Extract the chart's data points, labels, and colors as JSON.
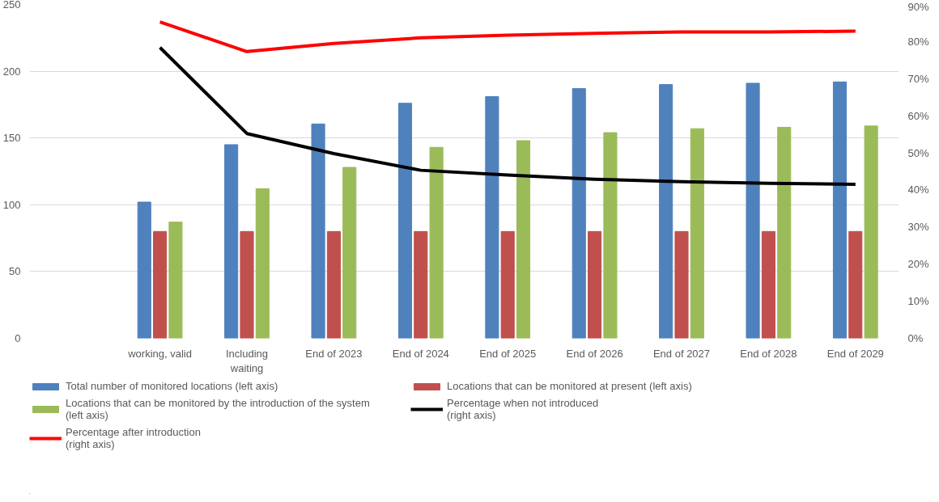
{
  "chart_data": {
    "type": "bar",
    "categories": [
      null,
      "working, valid",
      "Including\nwaiting",
      "End of 2023",
      "End of 2024",
      "End of 2025",
      "End of 2026",
      "End of 2027",
      "End of 2028",
      "End of 2029"
    ],
    "series": [
      {
        "name": "Total number of monitored locations (left axis)",
        "color": "#4f81bd",
        "values": [
          null,
          102,
          145,
          160.5,
          176,
          181,
          187,
          190,
          191,
          192
        ]
      },
      {
        "name": "Locations that can be monitored at present (left axis)",
        "color": "#c0504d",
        "values": [
          null,
          80,
          80,
          80,
          80,
          80,
          80,
          80,
          80,
          80
        ]
      },
      {
        "name": "Locations that can be monitored by the introduction of the system\n(left axis)",
        "color": "#9bbb59",
        "values": [
          null,
          87,
          112,
          128,
          143,
          148,
          154,
          157,
          158,
          159
        ]
      },
      {
        "name": "Percentage when not introduced\n(right axis)",
        "color": "#000000",
        "type": "line",
        "axis": "y2",
        "values": [
          null,
          78.4,
          55.2,
          49.8,
          45.3,
          44,
          42.9,
          42.2,
          41.8,
          41.5
        ]
      },
      {
        "name": "Percentage after introduction\n(right axis)",
        "color": "#ff0000",
        "type": "line",
        "axis": "y2",
        "values": [
          null,
          85.3,
          77.3,
          79.5,
          81,
          81.7,
          82.2,
          82.6,
          82.6,
          82.8
        ]
      }
    ],
    "ylim": [
      0,
      250
    ],
    "yticks": [
      0,
      50,
      100,
      150,
      200,
      250
    ],
    "y2lim": [
      0,
      90
    ],
    "y2ticks": [
      {
        "value": 0,
        "label": "0%"
      },
      {
        "value": 10,
        "label": "10%"
      },
      {
        "value": 20,
        "label": "20%"
      },
      {
        "value": 30,
        "label": "30%"
      },
      {
        "value": 40,
        "label": "40%"
      },
      {
        "value": 50,
        "label": "50%"
      },
      {
        "value": 60,
        "label": "60%"
      },
      {
        "value": 70,
        "label": "70%"
      },
      {
        "value": 80,
        "label": "80%"
      },
      {
        "value": 90,
        "label": "90%"
      }
    ],
    "grid": "y",
    "legend": "bottom"
  }
}
